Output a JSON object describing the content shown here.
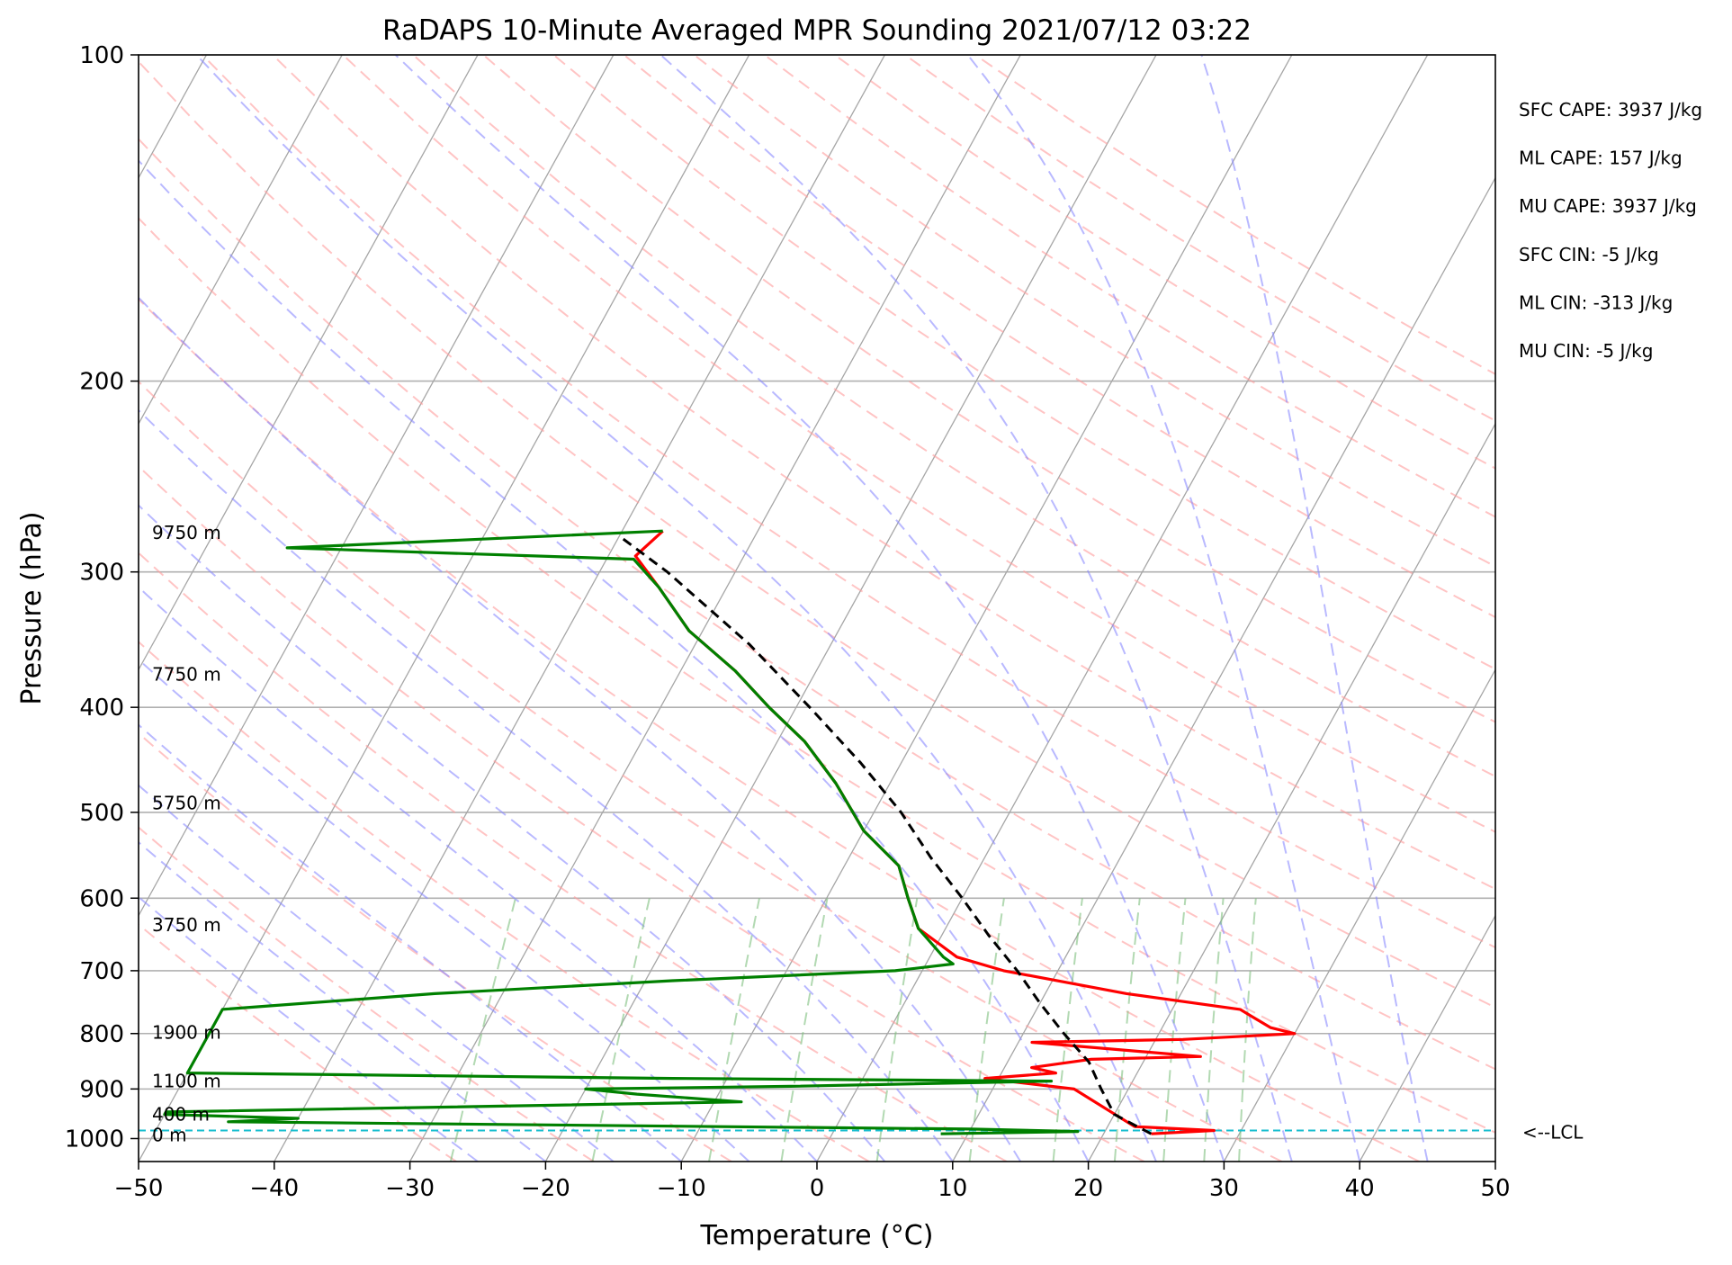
{
  "chart_data": {
    "type": "skew-t",
    "title": "RaDAPS 10-Minute Averaged MPR Sounding 2021/07/12 03:22",
    "xlabel": "Temperature (°C)",
    "ylabel": "Pressure (hPa)",
    "xlim": [
      -50,
      50
    ],
    "ylim": [
      1050,
      100
    ],
    "y_scale": "log",
    "x_ticks": [
      "−50",
      "−40",
      "−30",
      "−20",
      "−10",
      "0",
      "10",
      "20",
      "30",
      "40",
      "50"
    ],
    "y_ticks": [
      "100",
      "200",
      "300",
      "400",
      "500",
      "600",
      "700",
      "800",
      "900",
      "1000"
    ],
    "grid": "horizontal at major pressure ticks",
    "temperature_profile": {
      "color": "#ff0000",
      "points": [
        {
          "p": 990,
          "t": 23.5
        },
        {
          "p": 983,
          "t": 28
        },
        {
          "p": 975,
          "t": 22
        },
        {
          "p": 900,
          "t": 16
        },
        {
          "p": 880,
          "t": 9
        },
        {
          "p": 870,
          "t": 14
        },
        {
          "p": 860,
          "t": 12
        },
        {
          "p": 845,
          "t": 16
        },
        {
          "p": 840,
          "t": 24
        },
        {
          "p": 815,
          "t": 11
        },
        {
          "p": 810,
          "t": 22
        },
        {
          "p": 800,
          "t": 30
        },
        {
          "p": 790,
          "t": 28
        },
        {
          "p": 770,
          "t": 26
        },
        {
          "p": 760,
          "t": 25
        },
        {
          "p": 735,
          "t": 16
        },
        {
          "p": 700,
          "t": 6
        },
        {
          "p": 680,
          "t": 2
        },
        {
          "p": 640,
          "t": -2
        },
        {
          "p": 600,
          "t": -4
        },
        {
          "p": 560,
          "t": -6
        },
        {
          "p": 520,
          "t": -10
        },
        {
          "p": 470,
          "t": -14
        },
        {
          "p": 430,
          "t": -18
        },
        {
          "p": 400,
          "t": -22
        },
        {
          "p": 370,
          "t": -26
        },
        {
          "p": 340,
          "t": -31
        },
        {
          "p": 310,
          "t": -35
        },
        {
          "p": 290,
          "t": -38
        },
        {
          "p": 275,
          "t": -37
        }
      ]
    },
    "dewpoint_profile": {
      "color": "#008000",
      "points": [
        {
          "p": 990,
          "t": 8
        },
        {
          "p": 985,
          "t": 18
        },
        {
          "p": 980,
          "t": 10
        },
        {
          "p": 965,
          "t": -45
        },
        {
          "p": 958,
          "t": -40
        },
        {
          "p": 950,
          "t": -50
        },
        {
          "p": 945,
          "t": -50
        },
        {
          "p": 925,
          "t": -8
        },
        {
          "p": 910,
          "t": -16
        },
        {
          "p": 900,
          "t": -20
        },
        {
          "p": 895,
          "t": -5
        },
        {
          "p": 885,
          "t": 14
        },
        {
          "p": 880,
          "t": -14
        },
        {
          "p": 870,
          "t": -50
        },
        {
          "p": 760,
          "t": -50
        },
        {
          "p": 735,
          "t": -35
        },
        {
          "p": 715,
          "t": -18
        },
        {
          "p": 700,
          "t": -2
        },
        {
          "p": 690,
          "t": 2
        },
        {
          "p": 680,
          "t": 1
        },
        {
          "p": 640,
          "t": -2
        },
        {
          "p": 600,
          "t": -4
        },
        {
          "p": 560,
          "t": -6
        },
        {
          "p": 520,
          "t": -10
        },
        {
          "p": 470,
          "t": -14
        },
        {
          "p": 430,
          "t": -18
        },
        {
          "p": 400,
          "t": -22
        },
        {
          "p": 370,
          "t": -26
        },
        {
          "p": 340,
          "t": -31
        },
        {
          "p": 310,
          "t": -35
        },
        {
          "p": 292,
          "t": -38
        },
        {
          "p": 285,
          "t": -64
        },
        {
          "p": 275,
          "t": -37
        }
      ]
    },
    "parcel_profile": {
      "color": "#000000",
      "points": [
        {
          "p": 990,
          "t": 23.5
        },
        {
          "p": 950,
          "t": 20
        },
        {
          "p": 900,
          "t": 18
        },
        {
          "p": 850,
          "t": 16
        },
        {
          "p": 800,
          "t": 13
        },
        {
          "p": 750,
          "t": 10
        },
        {
          "p": 700,
          "t": 7
        },
        {
          "p": 650,
          "t": 3.5
        },
        {
          "p": 600,
          "t": 0
        },
        {
          "p": 550,
          "t": -4
        },
        {
          "p": 500,
          "t": -8
        },
        {
          "p": 450,
          "t": -13
        },
        {
          "p": 400,
          "t": -19
        },
        {
          "p": 350,
          "t": -26
        },
        {
          "p": 300,
          "t": -35
        },
        {
          "p": 278,
          "t": -40
        }
      ]
    },
    "lcl": {
      "p": 983,
      "label": "<--LCL"
    },
    "height_labels": [
      {
        "p": 276,
        "label": "9750 m"
      },
      {
        "p": 373,
        "label": "7750 m"
      },
      {
        "p": 490,
        "label": "5750 m"
      },
      {
        "p": 635,
        "label": "3750 m"
      },
      {
        "p": 798,
        "label": "1900 m"
      },
      {
        "p": 885,
        "label": "1100 m"
      },
      {
        "p": 950,
        "label": "400 m"
      },
      {
        "p": 992,
        "label": "0 m"
      }
    ],
    "stats": [
      "SFC CAPE: 3937 J/kg",
      "ML CAPE: 157 J/kg",
      "MU CAPE: 3937 J/kg",
      "SFC CIN: -5 J/kg",
      "ML CIN: -313 J/kg",
      "MU CIN: -5 J/kg"
    ]
  }
}
